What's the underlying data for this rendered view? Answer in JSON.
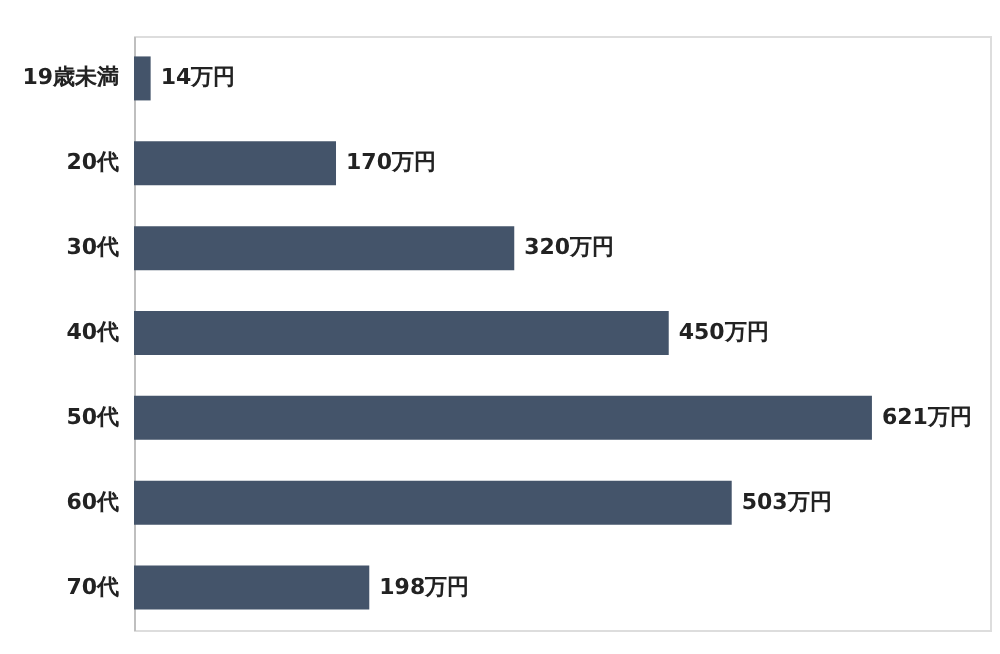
{
  "chart_data": {
    "type": "bar",
    "orientation": "horizontal",
    "categories": [
      "19歳未満",
      "20代",
      "30代",
      "40代",
      "50代",
      "60代",
      "70代"
    ],
    "values": [
      14,
      170,
      320,
      450,
      621,
      503,
      198
    ],
    "value_labels": [
      "14万円",
      "170万円",
      "320万円",
      "450万円",
      "621万円",
      "503万円",
      "198万円"
    ],
    "color": "#44546a"
  }
}
